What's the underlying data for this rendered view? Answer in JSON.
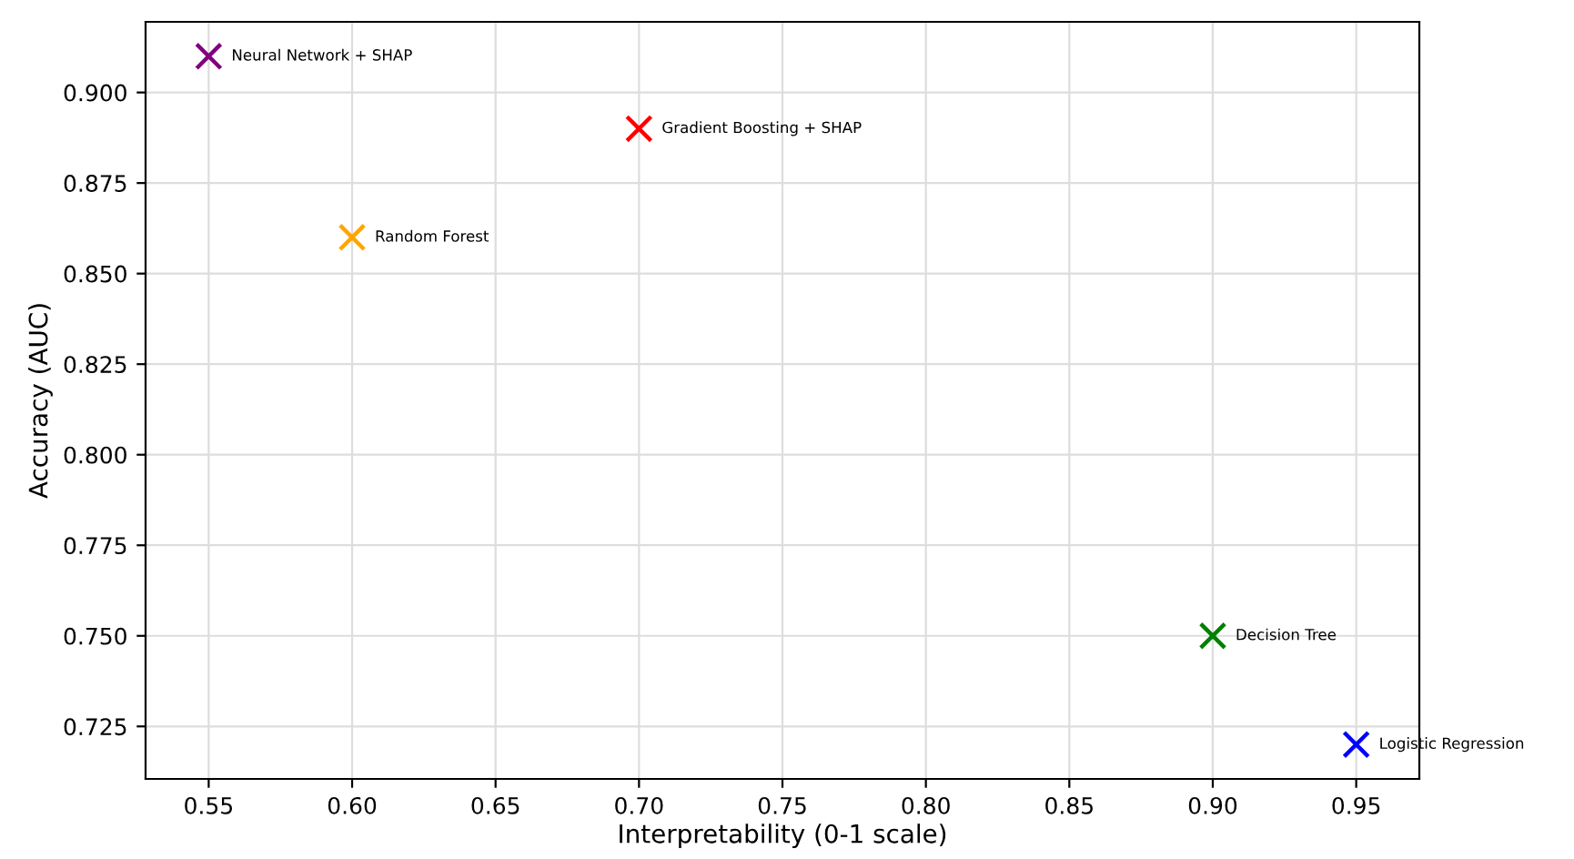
{
  "chart_data": {
    "type": "scatter",
    "xlabel": "Interpretability (0-1 scale)",
    "ylabel": "Accuracy (AUC)",
    "series": [
      {
        "name": "Logistic Regression",
        "color": "#0000ff",
        "x": [
          0.95
        ],
        "values": [
          0.72
        ]
      },
      {
        "name": "Decision Tree",
        "color": "#008000",
        "x": [
          0.9
        ],
        "values": [
          0.75
        ]
      },
      {
        "name": "Random Forest",
        "color": "#ffa500",
        "x": [
          0.6
        ],
        "values": [
          0.86
        ]
      },
      {
        "name": "Gradient Boosting + SHAP",
        "color": "#ff0000",
        "x": [
          0.7
        ],
        "values": [
          0.89
        ]
      },
      {
        "name": "Neural Network + SHAP",
        "color": "#800080",
        "x": [
          0.55
        ],
        "values": [
          0.91
        ]
      }
    ],
    "marker": "cross",
    "grid": true,
    "legend": false,
    "xlim": [
      0.528,
      0.972
    ],
    "ylim": [
      0.7105,
      0.9195
    ],
    "xticks": [
      {
        "value": 0.55,
        "label": "0.55"
      },
      {
        "value": 0.6,
        "label": "0.60"
      },
      {
        "value": 0.65,
        "label": "0.65"
      },
      {
        "value": 0.7,
        "label": "0.70"
      },
      {
        "value": 0.75,
        "label": "0.75"
      },
      {
        "value": 0.8,
        "label": "0.80"
      },
      {
        "value": 0.85,
        "label": "0.85"
      },
      {
        "value": 0.9,
        "label": "0.90"
      },
      {
        "value": 0.95,
        "label": "0.95"
      }
    ],
    "yticks": [
      {
        "value": 0.725,
        "label": "0.725"
      },
      {
        "value": 0.75,
        "label": "0.750"
      },
      {
        "value": 0.775,
        "label": "0.775"
      },
      {
        "value": 0.8,
        "label": "0.800"
      },
      {
        "value": 0.825,
        "label": "0.825"
      },
      {
        "value": 0.85,
        "label": "0.850"
      },
      {
        "value": 0.875,
        "label": "0.875"
      },
      {
        "value": 0.9,
        "label": "0.900"
      }
    ]
  }
}
